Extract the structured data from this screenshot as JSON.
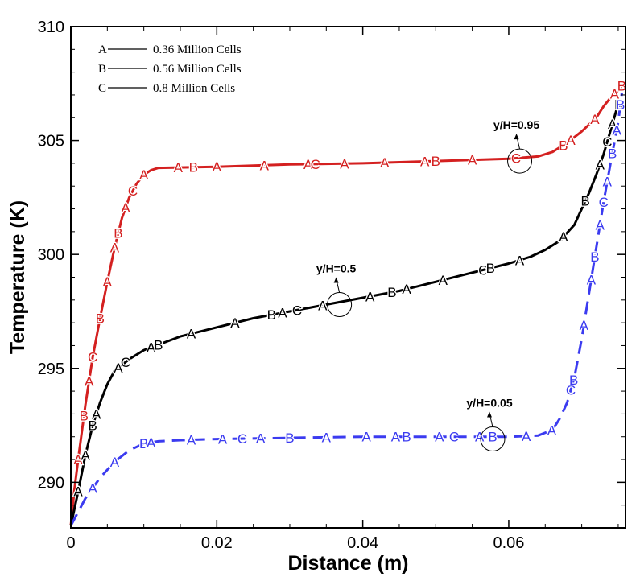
{
  "chart_data": {
    "type": "line",
    "title": "",
    "xlabel": "Distance (m)",
    "ylabel": "Temperature (K)",
    "xlim": [
      0,
      0.076
    ],
    "ylim": [
      288,
      310
    ],
    "xticks": [
      0,
      0.02,
      0.04,
      0.06
    ],
    "xtick_labels": [
      "0",
      "0.02",
      "0.04",
      "0.06"
    ],
    "yticks": [
      290,
      295,
      300,
      305,
      310
    ],
    "ytick_labels": [
      "290",
      "295",
      "300",
      "305",
      "310"
    ],
    "legend": {
      "placement": "top-left",
      "entries": [
        {
          "key": "A",
          "label": "0.36 Million Cells"
        },
        {
          "key": "B",
          "label": "0.56 Million Cells"
        },
        {
          "key": "C",
          "label": "0.8 Million Cells"
        }
      ]
    },
    "series": [
      {
        "name": "y/H=0.95",
        "color": "#d42020",
        "dash": "solid",
        "x": [
          0.0,
          0.0005,
          0.001,
          0.0015,
          0.002,
          0.003,
          0.004,
          0.005,
          0.006,
          0.007,
          0.008,
          0.009,
          0.01,
          0.011,
          0.012,
          0.02,
          0.03,
          0.04,
          0.05,
          0.06,
          0.064,
          0.066,
          0.068,
          0.07,
          0.072,
          0.073,
          0.074,
          0.075,
          0.0755
        ],
        "y": [
          288.1,
          289.7,
          291.0,
          292.2,
          293.4,
          295.5,
          297.2,
          298.8,
          300.3,
          301.6,
          302.5,
          303.1,
          303.5,
          303.7,
          303.8,
          303.85,
          303.95,
          304.0,
          304.1,
          304.2,
          304.3,
          304.5,
          304.9,
          305.4,
          306.0,
          306.5,
          306.9,
          307.2,
          307.4
        ]
      },
      {
        "name": "y/H=0.5",
        "color": "#000000",
        "dash": "solid",
        "x": [
          0.0,
          0.001,
          0.002,
          0.003,
          0.004,
          0.005,
          0.006,
          0.008,
          0.01,
          0.015,
          0.02,
          0.025,
          0.03,
          0.035,
          0.04,
          0.045,
          0.05,
          0.055,
          0.06,
          0.063,
          0.065,
          0.067,
          0.069,
          0.07,
          0.071,
          0.072,
          0.073,
          0.074,
          0.075
        ],
        "y": [
          288.1,
          289.6,
          291.2,
          292.5,
          293.5,
          294.3,
          294.9,
          295.4,
          295.8,
          296.4,
          296.8,
          297.2,
          297.5,
          297.8,
          298.1,
          298.4,
          298.8,
          299.2,
          299.6,
          299.9,
          300.2,
          300.6,
          301.3,
          302.0,
          302.7,
          303.5,
          304.4,
          305.5,
          306.6
        ]
      },
      {
        "name": "y/H=0.05",
        "color": "#3b3bf0",
        "dash": "dashed",
        "x": [
          0.0,
          0.001,
          0.002,
          0.004,
          0.006,
          0.008,
          0.01,
          0.012,
          0.015,
          0.02,
          0.03,
          0.04,
          0.05,
          0.06,
          0.064,
          0.066,
          0.067,
          0.068,
          0.069,
          0.07,
          0.071,
          0.072,
          0.073,
          0.074,
          0.075,
          0.0755
        ],
        "y": [
          288.1,
          288.7,
          289.3,
          290.2,
          290.9,
          291.4,
          291.7,
          291.8,
          291.85,
          291.9,
          291.95,
          292.0,
          292.0,
          292.0,
          292.05,
          292.3,
          292.8,
          293.5,
          294.6,
          296.3,
          298.3,
          300.3,
          302.3,
          304.1,
          305.8,
          307.1
        ]
      }
    ],
    "markers": [
      {
        "series": 0,
        "label": "A",
        "x": 0.001
      },
      {
        "series": 0,
        "label": "B",
        "x": 0.0018
      },
      {
        "series": 0,
        "label": "A",
        "x": 0.0025
      },
      {
        "series": 0,
        "label": "C",
        "x": 0.003
      },
      {
        "series": 0,
        "label": "B",
        "x": 0.004
      },
      {
        "series": 0,
        "label": "A",
        "x": 0.005
      },
      {
        "series": 0,
        "label": "A",
        "x": 0.006
      },
      {
        "series": 0,
        "label": "B",
        "x": 0.0065
      },
      {
        "series": 0,
        "label": "A",
        "x": 0.0075
      },
      {
        "series": 0,
        "label": "C",
        "x": 0.0085
      },
      {
        "series": 0,
        "label": "A",
        "x": 0.01
      },
      {
        "series": 0,
        "label": "A",
        "x": 0.0147
      },
      {
        "series": 0,
        "label": "B",
        "x": 0.0168
      },
      {
        "series": 0,
        "label": "A",
        "x": 0.02
      },
      {
        "series": 0,
        "label": "A",
        "x": 0.0265
      },
      {
        "series": 0,
        "label": "A",
        "x": 0.0325
      },
      {
        "series": 0,
        "label": "C",
        "x": 0.0335
      },
      {
        "series": 0,
        "label": "A",
        "x": 0.0375
      },
      {
        "series": 0,
        "label": "A",
        "x": 0.043
      },
      {
        "series": 0,
        "label": "A",
        "x": 0.0485
      },
      {
        "series": 0,
        "label": "B",
        "x": 0.05
      },
      {
        "series": 0,
        "label": "A",
        "x": 0.055
      },
      {
        "series": 0,
        "label": "C",
        "x": 0.061
      },
      {
        "series": 0,
        "label": "B",
        "x": 0.0675
      },
      {
        "series": 0,
        "label": "A",
        "x": 0.0685
      },
      {
        "series": 0,
        "label": "A",
        "x": 0.0718
      },
      {
        "series": 0,
        "label": "A",
        "x": 0.0745
      },
      {
        "series": 0,
        "label": "B",
        "x": 0.0755
      },
      {
        "series": 1,
        "label": "A",
        "x": 0.001
      },
      {
        "series": 1,
        "label": "A",
        "x": 0.002
      },
      {
        "series": 1,
        "label": "B",
        "x": 0.003
      },
      {
        "series": 1,
        "label": "A",
        "x": 0.0035
      },
      {
        "series": 1,
        "label": "A",
        "x": 0.0065
      },
      {
        "series": 1,
        "label": "C",
        "x": 0.0075
      },
      {
        "series": 1,
        "label": "A",
        "x": 0.011
      },
      {
        "series": 1,
        "label": "B",
        "x": 0.012
      },
      {
        "series": 1,
        "label": "A",
        "x": 0.0165
      },
      {
        "series": 1,
        "label": "A",
        "x": 0.0225
      },
      {
        "series": 1,
        "label": "B",
        "x": 0.0275
      },
      {
        "series": 1,
        "label": "A",
        "x": 0.029
      },
      {
        "series": 1,
        "label": "C",
        "x": 0.031
      },
      {
        "series": 1,
        "label": "A",
        "x": 0.0345
      },
      {
        "series": 1,
        "label": "A",
        "x": 0.041
      },
      {
        "series": 1,
        "label": "B",
        "x": 0.044
      },
      {
        "series": 1,
        "label": "A",
        "x": 0.046
      },
      {
        "series": 1,
        "label": "A",
        "x": 0.051
      },
      {
        "series": 1,
        "label": "C",
        "x": 0.0565
      },
      {
        "series": 1,
        "label": "B",
        "x": 0.0575
      },
      {
        "series": 1,
        "label": "A",
        "x": 0.0615
      },
      {
        "series": 1,
        "label": "A",
        "x": 0.0675
      },
      {
        "series": 1,
        "label": "B",
        "x": 0.0705
      },
      {
        "series": 1,
        "label": "A",
        "x": 0.0725
      },
      {
        "series": 1,
        "label": "C",
        "x": 0.0735
      },
      {
        "series": 1,
        "label": "A",
        "x": 0.0742
      },
      {
        "series": 1,
        "label": "B",
        "x": 0.0751
      },
      {
        "series": 2,
        "label": "A",
        "x": 0.003
      },
      {
        "series": 2,
        "label": "A",
        "x": 0.006
      },
      {
        "series": 2,
        "label": "B",
        "x": 0.01
      },
      {
        "series": 2,
        "label": "A",
        "x": 0.011
      },
      {
        "series": 2,
        "label": "A",
        "x": 0.0165
      },
      {
        "series": 2,
        "label": "A",
        "x": 0.0208
      },
      {
        "series": 2,
        "label": "C",
        "x": 0.0235
      },
      {
        "series": 2,
        "label": "A",
        "x": 0.026
      },
      {
        "series": 2,
        "label": "B",
        "x": 0.03
      },
      {
        "series": 2,
        "label": "A",
        "x": 0.035
      },
      {
        "series": 2,
        "label": "A",
        "x": 0.0405
      },
      {
        "series": 2,
        "label": "A",
        "x": 0.0445
      },
      {
        "series": 2,
        "label": "B",
        "x": 0.046
      },
      {
        "series": 2,
        "label": "A",
        "x": 0.0505
      },
      {
        "series": 2,
        "label": "C",
        "x": 0.0525
      },
      {
        "series": 2,
        "label": "A",
        "x": 0.056
      },
      {
        "series": 2,
        "label": "B",
        "x": 0.0578
      },
      {
        "series": 2,
        "label": "A",
        "x": 0.0624
      },
      {
        "series": 2,
        "label": "A",
        "x": 0.0659
      },
      {
        "series": 2,
        "label": "C",
        "x": 0.0685
      },
      {
        "series": 2,
        "label": "B",
        "x": 0.0689
      },
      {
        "series": 2,
        "label": "A",
        "x": 0.0703
      },
      {
        "series": 2,
        "label": "A",
        "x": 0.0713
      },
      {
        "series": 2,
        "label": "B",
        "x": 0.0718
      },
      {
        "series": 2,
        "label": "A",
        "x": 0.0725
      },
      {
        "series": 2,
        "label": "C",
        "x": 0.073
      },
      {
        "series": 2,
        "label": "A",
        "x": 0.0735
      },
      {
        "series": 2,
        "label": "B",
        "x": 0.0742
      },
      {
        "series": 2,
        "label": "A",
        "x": 0.0748
      },
      {
        "series": 2,
        "label": "B",
        "x": 0.0753
      }
    ],
    "annotations": [
      {
        "text": "y/H=0.95",
        "x": 0.0615,
        "y": 304.1
      },
      {
        "text": "y/H=0.5",
        "x": 0.0368,
        "y": 297.8
      },
      {
        "text": "y/H=0.05",
        "x": 0.0578,
        "y": 291.9
      }
    ]
  }
}
